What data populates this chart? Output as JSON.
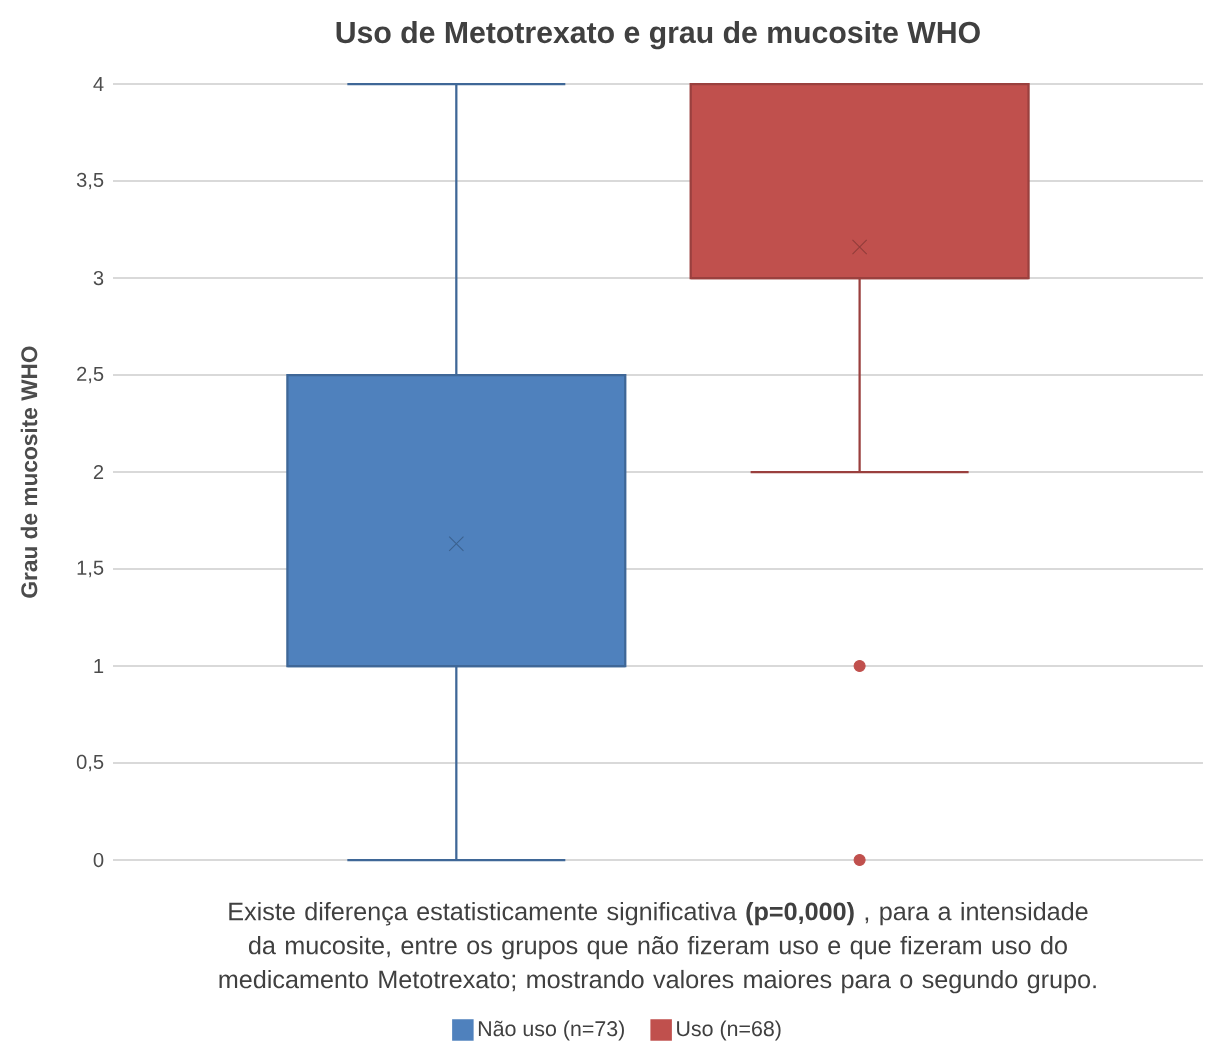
{
  "chart_data": {
    "type": "box",
    "title": "Uso de Metotrexato e grau de mucosite WHO",
    "ylabel": "Grau de mucosite WHO",
    "categories": [
      null
    ],
    "series": [
      {
        "name": "Não uso (n=73)",
        "color": "#4f81bd",
        "boxes": [
          {
            "low": 0,
            "q1": 1,
            "median": 1,
            "q3": 2.5,
            "high": 4,
            "mean": 1.63
          }
        ]
      },
      {
        "name": "Uso (n=68)",
        "color": "#c0504d",
        "boxes": [
          {
            "low": 2,
            "q1": 3,
            "median": 3,
            "q3": 4,
            "high": 4,
            "mean": 3.16,
            "outliers": [
              1,
              0
            ]
          }
        ]
      }
    ],
    "ylim": [
      0,
      4
    ],
    "yticks": [
      0,
      {
        "value": 0.5,
        "label": "0,5"
      },
      1,
      {
        "value": 1.5,
        "label": "1,5"
      },
      2,
      {
        "value": 2.5,
        "label": "2,5"
      },
      3,
      {
        "value": 3.5,
        "label": "3,5"
      },
      4
    ],
    "grid": "y",
    "legend": "bottom",
    "annotations": [
      "Existe diferença estatisticamente significativa **(p=0,000)** , para a intensidade da mucosite, entre os grupos que não fizeram uso e que fizeram uso do medicamento Metotrexato; mostrando valores maiores para o segundo grupo."
    ]
  }
}
